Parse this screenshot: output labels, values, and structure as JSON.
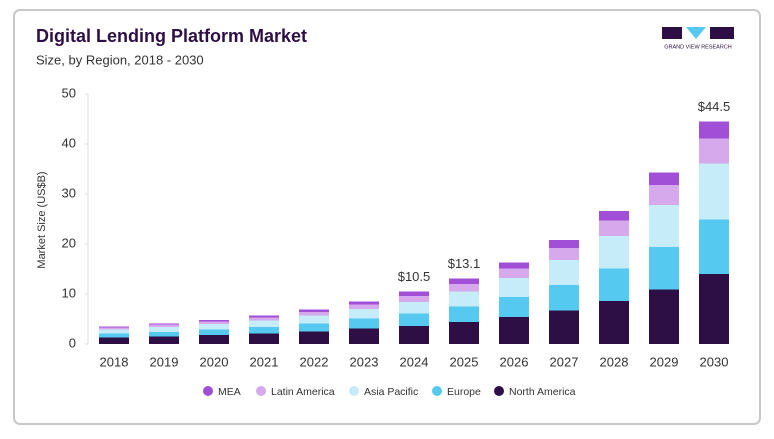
{
  "chart_data": {
    "type": "stacked-bar",
    "title": "Digital Lending Platform Market",
    "subtitle": "Size, by Region, 2018 - 2030",
    "y_label": "Market Size (US$B)",
    "categories": [
      "2018",
      "2019",
      "2020",
      "2021",
      "2022",
      "2023",
      "2024",
      "2025",
      "2026",
      "2027",
      "2028",
      "2029",
      "2030"
    ],
    "series": [
      {
        "name": "MEA",
        "color": "#a14fd6",
        "values": [
          0.2,
          0.2,
          0.3,
          0.4,
          0.5,
          0.6,
          0.9,
          1.1,
          1.2,
          1.6,
          1.9,
          2.5,
          3.4
        ]
      },
      {
        "name": "Latin America",
        "color": "#d5a9ec",
        "values": [
          0.4,
          0.5,
          0.5,
          0.6,
          0.7,
          0.9,
          1.2,
          1.5,
          1.9,
          2.4,
          3.1,
          4.0,
          5.0
        ]
      },
      {
        "name": "Asia Pacific",
        "color": "#c6ecfa",
        "values": [
          0.8,
          1.0,
          1.1,
          1.3,
          1.6,
          1.9,
          2.3,
          3.0,
          3.8,
          5.0,
          6.5,
          8.4,
          11.2
        ]
      },
      {
        "name": "Europe",
        "color": "#56c9f0",
        "values": [
          0.8,
          0.9,
          1.1,
          1.3,
          1.6,
          2.0,
          2.5,
          3.1,
          4.0,
          5.1,
          6.5,
          8.5,
          10.9
        ]
      },
      {
        "name": "North America",
        "color": "#2d0f45",
        "values": [
          1.3,
          1.5,
          1.8,
          2.1,
          2.5,
          3.1,
          3.6,
          4.4,
          5.4,
          6.7,
          8.6,
          10.9,
          14.0
        ]
      }
    ],
    "totals": [
      null,
      null,
      null,
      null,
      null,
      null,
      10.5,
      13.1,
      null,
      null,
      null,
      null,
      44.5
    ],
    "total_labels": [
      null,
      null,
      null,
      null,
      null,
      null,
      "$10.5",
      "$13.1",
      null,
      null,
      null,
      null,
      "$44.5"
    ],
    "ylim": [
      0,
      50
    ],
    "yticks": [
      0,
      10,
      20,
      30,
      40,
      50
    ],
    "grid": false
  },
  "logo": "GRAND VIEW RESEARCH"
}
